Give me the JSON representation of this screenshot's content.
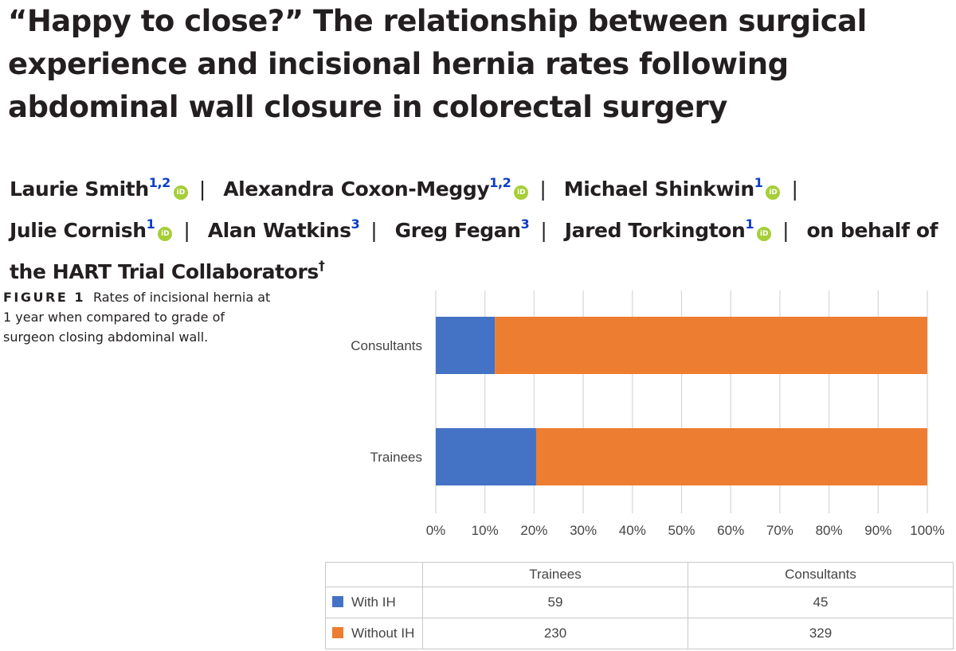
{
  "article": {
    "title": "“Happy to close?” The relationship between surgical experience and incisional hernia rates following abdominal wall closure in colorectal surgery",
    "orcid_icon_text": "iD",
    "separator": "|",
    "authors": [
      {
        "name": "Laurie Smith",
        "aff": "1,2",
        "orcid": true
      },
      {
        "name": "Alexandra Coxon-Meggy",
        "aff": "1,2",
        "orcid": true
      },
      {
        "name": "Michael Shinkwin",
        "aff": "1",
        "orcid": true
      },
      {
        "name": "Julie Cornish",
        "aff": "1",
        "orcid": true
      },
      {
        "name": "Alan Watkins",
        "aff": "3",
        "orcid": false
      },
      {
        "name": "Greg Fegan",
        "aff": "3",
        "orcid": false
      },
      {
        "name": "Jared Torkington",
        "aff": "1",
        "orcid": true
      }
    ],
    "collaborators": {
      "text": "on behalf of the HART Trial Collaborators",
      "mark": "†"
    }
  },
  "figure": {
    "label": "FIGURE 1",
    "caption": "Rates of incisional hernia at 1 year when compared to grade of surgeon closing abdominal wall."
  },
  "chart_data": {
    "type": "bar",
    "orientation": "horizontal",
    "stacked": "100%",
    "categories": [
      "Consultants",
      "Trainees"
    ],
    "series": [
      {
        "name": "With IH",
        "values": [
          45,
          59
        ],
        "color": "#4472c4"
      },
      {
        "name": "Without IH",
        "values": [
          329,
          230
        ],
        "color": "#ed7d31"
      }
    ],
    "x_ticks": [
      "0%",
      "10%",
      "20%",
      "30%",
      "40%",
      "50%",
      "60%",
      "70%",
      "80%",
      "90%",
      "100%"
    ],
    "xlim": [
      0,
      100
    ],
    "grid": true,
    "legend": "data table below chart",
    "table": {
      "columns": [
        "Trainees",
        "Consultants"
      ],
      "rows": [
        {
          "label": "With IH",
          "values": [
            "59",
            "45"
          ],
          "color": "#4472c4"
        },
        {
          "label": "Without IH",
          "values": [
            "230",
            "329"
          ],
          "color": "#ed7d31"
        }
      ]
    }
  }
}
